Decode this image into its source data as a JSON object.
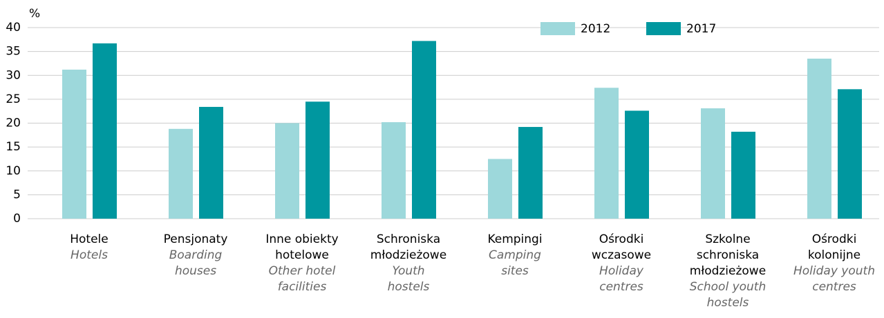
{
  "chart_data": {
    "type": "bar",
    "unit": "%",
    "categories": [
      "Hotele",
      "Pensjonaty",
      "Inne obiekty\nhotelowe",
      "Schroniska\nmłodzieżowe",
      "Kempingi",
      "Ośrodki\nwczasowe",
      "Szkolne\nschroniska\nmłodzieżowe",
      "Ośrodki\nkolonijne"
    ],
    "categories_en": [
      "Hotels",
      "Boarding\nhouses",
      "Other hotel\nfacilities",
      "Youth\nhostels",
      "Camping\nsites",
      "Holiday\ncentres",
      "School youth\nhostels",
      "Holiday youth\ncentres"
    ],
    "series": [
      {
        "name": "2012",
        "color": "#9dd8db",
        "values": [
          31.2,
          18.8,
          20.0,
          20.2,
          12.5,
          27.4,
          23.1,
          33.5
        ]
      },
      {
        "name": "2017",
        "color": "#00979f",
        "values": [
          36.7,
          23.4,
          24.5,
          37.2,
          19.2,
          22.6,
          18.2,
          27.1
        ]
      }
    ],
    "ylim": [
      0,
      40
    ],
    "yticks": [
      0,
      5,
      10,
      15,
      20,
      25,
      30,
      35,
      40
    ],
    "grid": true,
    "legend": "top-right"
  }
}
